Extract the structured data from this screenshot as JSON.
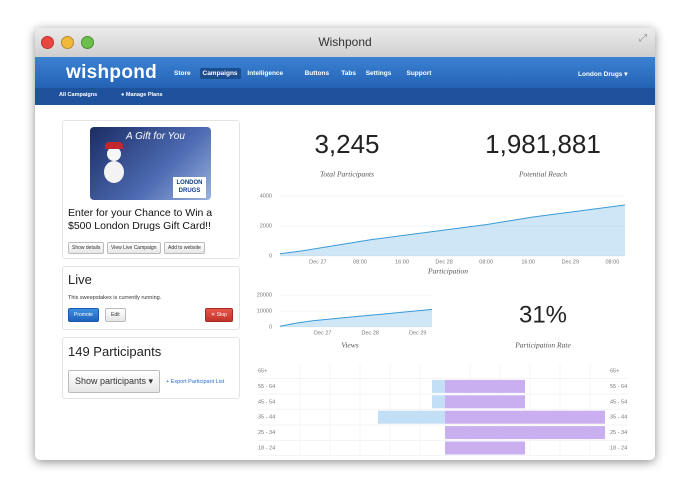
{
  "window": {
    "title": "Wishpond"
  },
  "nav": {
    "brand": "wishpond",
    "items": [
      "Store",
      "Campaigns",
      "Intelligence",
      "Buttons",
      "Tabs",
      "Settings",
      "Support"
    ],
    "active": 1,
    "account": "London Drugs"
  },
  "subnav": {
    "items": [
      "All Campaigns",
      "Manage Plans"
    ]
  },
  "campaign": {
    "image_title": "A Gift for You",
    "image_logo": [
      "LONDON",
      "DRUGS"
    ],
    "title": "Enter for your Chance to Win a $500 London Drugs Gift Card!!",
    "buttons": [
      "Show details",
      "View Live Campaign",
      "Add to website"
    ]
  },
  "status": {
    "title": "Live",
    "text": "This sweepstakes is currently running.",
    "buttons": [
      "Promote",
      "Edit",
      "Stop"
    ]
  },
  "participants": {
    "title": "149 Participants",
    "select": "Show participants",
    "export": "Export Participant List"
  },
  "stats": [
    {
      "value": "3,245",
      "label": "Total Participants"
    },
    {
      "value": "1,981,881",
      "label": "Potential Reach"
    },
    {
      "value": "31%",
      "label": "Participation Rate"
    }
  ],
  "participation_chart": {
    "type": "area",
    "title": "Participation",
    "color": "#3a9ad9",
    "xtick_labels": [
      "Dec 27",
      "08:00",
      "16:00",
      "Dec 28",
      "08:00",
      "16:00",
      "Dec 29",
      "08:00"
    ],
    "values": [
      150,
      350,
      600,
      850,
      1100,
      1300,
      1500,
      1700,
      1900,
      2100,
      2350,
      2600,
      2800,
      3000,
      3200,
      3400
    ],
    "ylim": [
      0,
      4000
    ],
    "yticks": [
      0,
      2000,
      4000
    ]
  },
  "views_chart": {
    "type": "area",
    "title": "Views",
    "color": "#3a9ad9",
    "xtick_labels": [
      "Dec 27",
      "Dec 28",
      "Dec 29"
    ],
    "values": [
      500,
      2500,
      4000,
      5000,
      6000,
      7000,
      8000,
      9000,
      10000,
      11000
    ],
    "ylim": [
      0,
      20000
    ],
    "yticks": [
      0,
      10000,
      20000
    ]
  },
  "age_chart": {
    "type": "pyramid",
    "categories": [
      "65+",
      "55 - 64",
      "45 - 54",
      "35 - 44",
      "25 - 34",
      "18 - 24"
    ],
    "series": [
      {
        "color": "#c3dff5",
        "values": [
          0,
          13,
          13,
          67,
          0,
          0
        ]
      },
      {
        "color": "#c9aef0",
        "values": [
          0,
          80,
          80,
          160,
          160,
          80
        ]
      }
    ]
  }
}
